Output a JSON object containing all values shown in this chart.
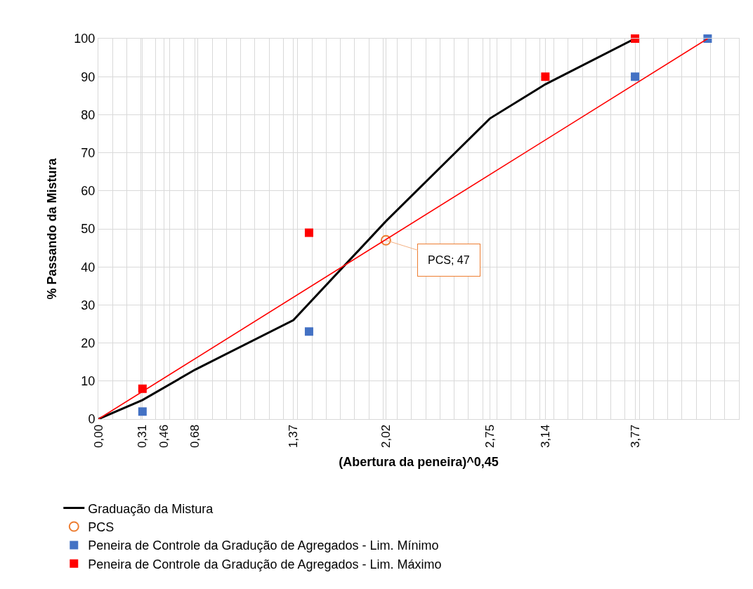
{
  "chart_data": {
    "type": "line",
    "xlabel": "(Abertura da peneira)^0,45",
    "ylabel": "% Passando da Mistura",
    "xlim": [
      0,
      4.5
    ],
    "ylim": [
      0,
      100
    ],
    "xticks": [
      {
        "value": 0,
        "label": "0,00"
      },
      {
        "value": 0.31,
        "label": "0,31"
      },
      {
        "value": 0.46,
        "label": "0,46"
      },
      {
        "value": 0.68,
        "label": "0,68"
      },
      {
        "value": 1.37,
        "label": "1,37"
      },
      {
        "value": 2.02,
        "label": "2,02"
      },
      {
        "value": 2.75,
        "label": "2,75"
      },
      {
        "value": 3.14,
        "label": "3,14"
      },
      {
        "value": 3.77,
        "label": "3,77"
      },
      {
        "value": 0.1,
        "label": null
      },
      {
        "value": 0.2,
        "label": null
      },
      {
        "value": 0.3,
        "label": null
      },
      {
        "value": 0.4,
        "label": null
      },
      {
        "value": 0.5,
        "label": null
      },
      {
        "value": 0.6,
        "label": null
      },
      {
        "value": 0.7,
        "label": null
      },
      {
        "value": 0.8,
        "label": null
      },
      {
        "value": 0.9,
        "label": null
      },
      {
        "value": 1.0,
        "label": null
      },
      {
        "value": 1.1,
        "label": null
      },
      {
        "value": 1.2,
        "label": null
      },
      {
        "value": 1.3,
        "label": null
      },
      {
        "value": 1.4,
        "label": null
      },
      {
        "value": 1.5,
        "label": null
      },
      {
        "value": 1.6,
        "label": null
      },
      {
        "value": 1.7,
        "label": null
      },
      {
        "value": 1.8,
        "label": null
      },
      {
        "value": 1.9,
        "label": null
      },
      {
        "value": 2.0,
        "label": null
      },
      {
        "value": 2.1,
        "label": null
      },
      {
        "value": 2.2,
        "label": null
      },
      {
        "value": 2.3,
        "label": null
      },
      {
        "value": 2.4,
        "label": null
      },
      {
        "value": 2.5,
        "label": null
      },
      {
        "value": 2.6,
        "label": null
      },
      {
        "value": 2.7,
        "label": null
      },
      {
        "value": 2.8,
        "label": null
      },
      {
        "value": 2.9,
        "label": null
      },
      {
        "value": 3.0,
        "label": null
      },
      {
        "value": 3.1,
        "label": null
      },
      {
        "value": 3.2,
        "label": null
      },
      {
        "value": 3.3,
        "label": null
      },
      {
        "value": 3.4,
        "label": null
      },
      {
        "value": 3.5,
        "label": null
      },
      {
        "value": 3.6,
        "label": null
      },
      {
        "value": 3.7,
        "label": null
      },
      {
        "value": 3.8,
        "label": null
      },
      {
        "value": 3.9,
        "label": null
      },
      {
        "value": 4.0,
        "label": null
      },
      {
        "value": 4.1,
        "label": null
      },
      {
        "value": 4.2,
        "label": null
      },
      {
        "value": 4.3,
        "label": null
      },
      {
        "value": 4.4,
        "label": null
      },
      {
        "value": 4.5,
        "label": null
      }
    ],
    "yticks": [
      0,
      10,
      20,
      30,
      40,
      50,
      60,
      70,
      80,
      90,
      100
    ],
    "grid": true,
    "legend": "bottom",
    "series": [
      {
        "name": "Graduação da Mistura",
        "type": "line",
        "color": "#000000",
        "marker": "none",
        "x": [
          0,
          0.31,
          0.68,
          1.37,
          2.02,
          2.75,
          3.14,
          3.77
        ],
        "values": [
          0,
          5,
          13,
          26,
          52,
          79,
          88,
          100
        ]
      },
      {
        "name": "PCS",
        "type": "scatter",
        "color": "#ed7d31",
        "marker": "circle",
        "x": [
          2.02
        ],
        "values": [
          47
        ]
      },
      {
        "name": "Peneira de Controle da Gradução de Agregados - Lim. Mínimo",
        "type": "scatter",
        "color": "#4472c4",
        "marker": "square",
        "x": [
          0.31,
          1.48,
          3.77,
          4.28
        ],
        "values": [
          2,
          23,
          90,
          100
        ]
      },
      {
        "name": "Peneira de Controle da Gradução de Agregados - Lim. Máximo",
        "type": "scatter",
        "color": "#ff0000",
        "marker": "square",
        "x": [
          0.31,
          1.48,
          3.14,
          3.77
        ],
        "values": [
          8,
          49,
          90,
          100
        ]
      },
      {
        "type": "line",
        "color": "#ff0000",
        "marker": "none",
        "x": [
          0,
          4.28
        ],
        "values": [
          0,
          100
        ]
      }
    ],
    "annotations": [
      {
        "text": "PCS; 47",
        "x": 2.02,
        "y": 47
      }
    ]
  }
}
